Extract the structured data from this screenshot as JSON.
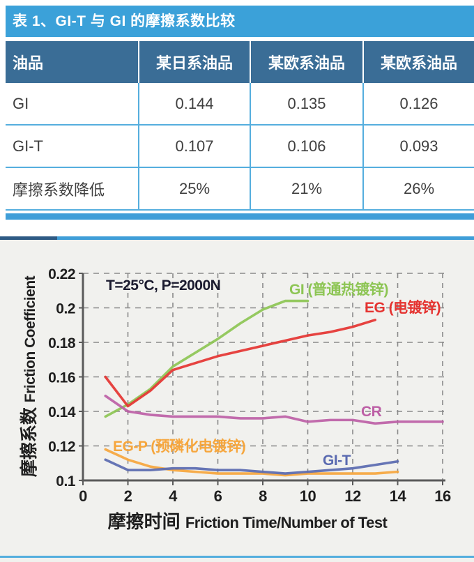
{
  "table": {
    "title": "表 1、GI-T 与 GI 的摩擦系数比较",
    "columns": [
      "油品",
      "某日系油品",
      "某欧系油品",
      "某欧系油品"
    ],
    "rows": [
      {
        "label": "GI",
        "values": [
          "0.144",
          "0.135",
          "0.126"
        ]
      },
      {
        "label": "GI-T",
        "values": [
          "0.107",
          "0.106",
          "0.093"
        ]
      },
      {
        "label": "摩擦系数降低",
        "values": [
          "25%",
          "21%",
          "26%"
        ]
      }
    ]
  },
  "chart_data": {
    "type": "line",
    "annotation": "T=25°C, P=2000N",
    "xlabel_cn": "摩擦时间",
    "xlabel_en": "Friction Time/Number of Test",
    "ylabel_cn": "摩擦系数",
    "ylabel_en": "Friction Coefficient",
    "x_ticks": [
      0,
      2,
      4,
      6,
      8,
      10,
      12,
      14,
      16
    ],
    "y_ticks": [
      0.1,
      0.12,
      0.14,
      0.16,
      0.18,
      0.2,
      0.22
    ],
    "xlim": [
      0,
      16.5
    ],
    "ylim": [
      0.1,
      0.22
    ],
    "grid": "dashed",
    "legend_position": "inline-labels",
    "series": [
      {
        "name": "GI",
        "label": "GI (普通热镀锌)",
        "color": "#8dc554",
        "x": [
          1,
          2,
          3,
          4,
          5,
          6,
          7,
          8,
          9,
          10
        ],
        "values": [
          0.137,
          0.144,
          0.153,
          0.166,
          0.174,
          0.182,
          0.191,
          0.199,
          0.204,
          0.204
        ]
      },
      {
        "name": "EG",
        "label": "EG (电镀锌)",
        "color": "#e53431",
        "x": [
          1,
          2,
          3,
          4,
          5,
          6,
          7,
          8,
          9,
          10,
          11,
          12,
          13
        ],
        "values": [
          0.16,
          0.143,
          0.152,
          0.164,
          0.168,
          0.172,
          0.175,
          0.178,
          0.181,
          0.184,
          0.186,
          0.189,
          0.193
        ]
      },
      {
        "name": "CR",
        "label": "CR",
        "color": "#bd5fa6",
        "x": [
          1,
          2,
          3,
          4,
          5,
          6,
          7,
          8,
          9,
          10,
          11,
          12,
          13,
          14,
          15,
          16
        ],
        "values": [
          0.149,
          0.14,
          0.138,
          0.137,
          0.137,
          0.137,
          0.136,
          0.136,
          0.137,
          0.134,
          0.135,
          0.135,
          0.133,
          0.134,
          0.134,
          0.134
        ]
      },
      {
        "name": "EG-P",
        "label": "EG-P (预磷化电镀锌)",
        "color": "#f6a63d",
        "x": [
          1,
          2,
          3,
          4,
          5,
          6,
          7,
          8,
          9,
          10,
          11,
          12,
          13,
          14
        ],
        "values": [
          0.118,
          0.112,
          0.108,
          0.106,
          0.105,
          0.104,
          0.104,
          0.104,
          0.103,
          0.104,
          0.104,
          0.104,
          0.104,
          0.105
        ]
      },
      {
        "name": "GI-T",
        "label": "GI-T",
        "color": "#5a6ab0",
        "x": [
          1,
          2,
          3,
          4,
          5,
          6,
          7,
          8,
          9,
          10,
          11,
          12,
          13,
          14
        ],
        "values": [
          0.112,
          0.106,
          0.106,
          0.107,
          0.107,
          0.106,
          0.106,
          0.105,
          0.104,
          0.105,
          0.106,
          0.107,
          0.109,
          0.111
        ]
      }
    ]
  },
  "colors": {
    "table_title_bg": "#3ba1d9",
    "table_header_bg": "#3a6d96",
    "table_divider": "#55aede",
    "table_strip": "#3f9ed8",
    "accent_dark": "#2e5a84",
    "accent_light": "#3f9ed8",
    "panel_bg": "#f1f1ee",
    "grid_color": "#8a8a8a",
    "axis_color": "#5a5a5a",
    "tick_text": "#1e1e1e",
    "annotation_text": "#1b1b2f"
  }
}
